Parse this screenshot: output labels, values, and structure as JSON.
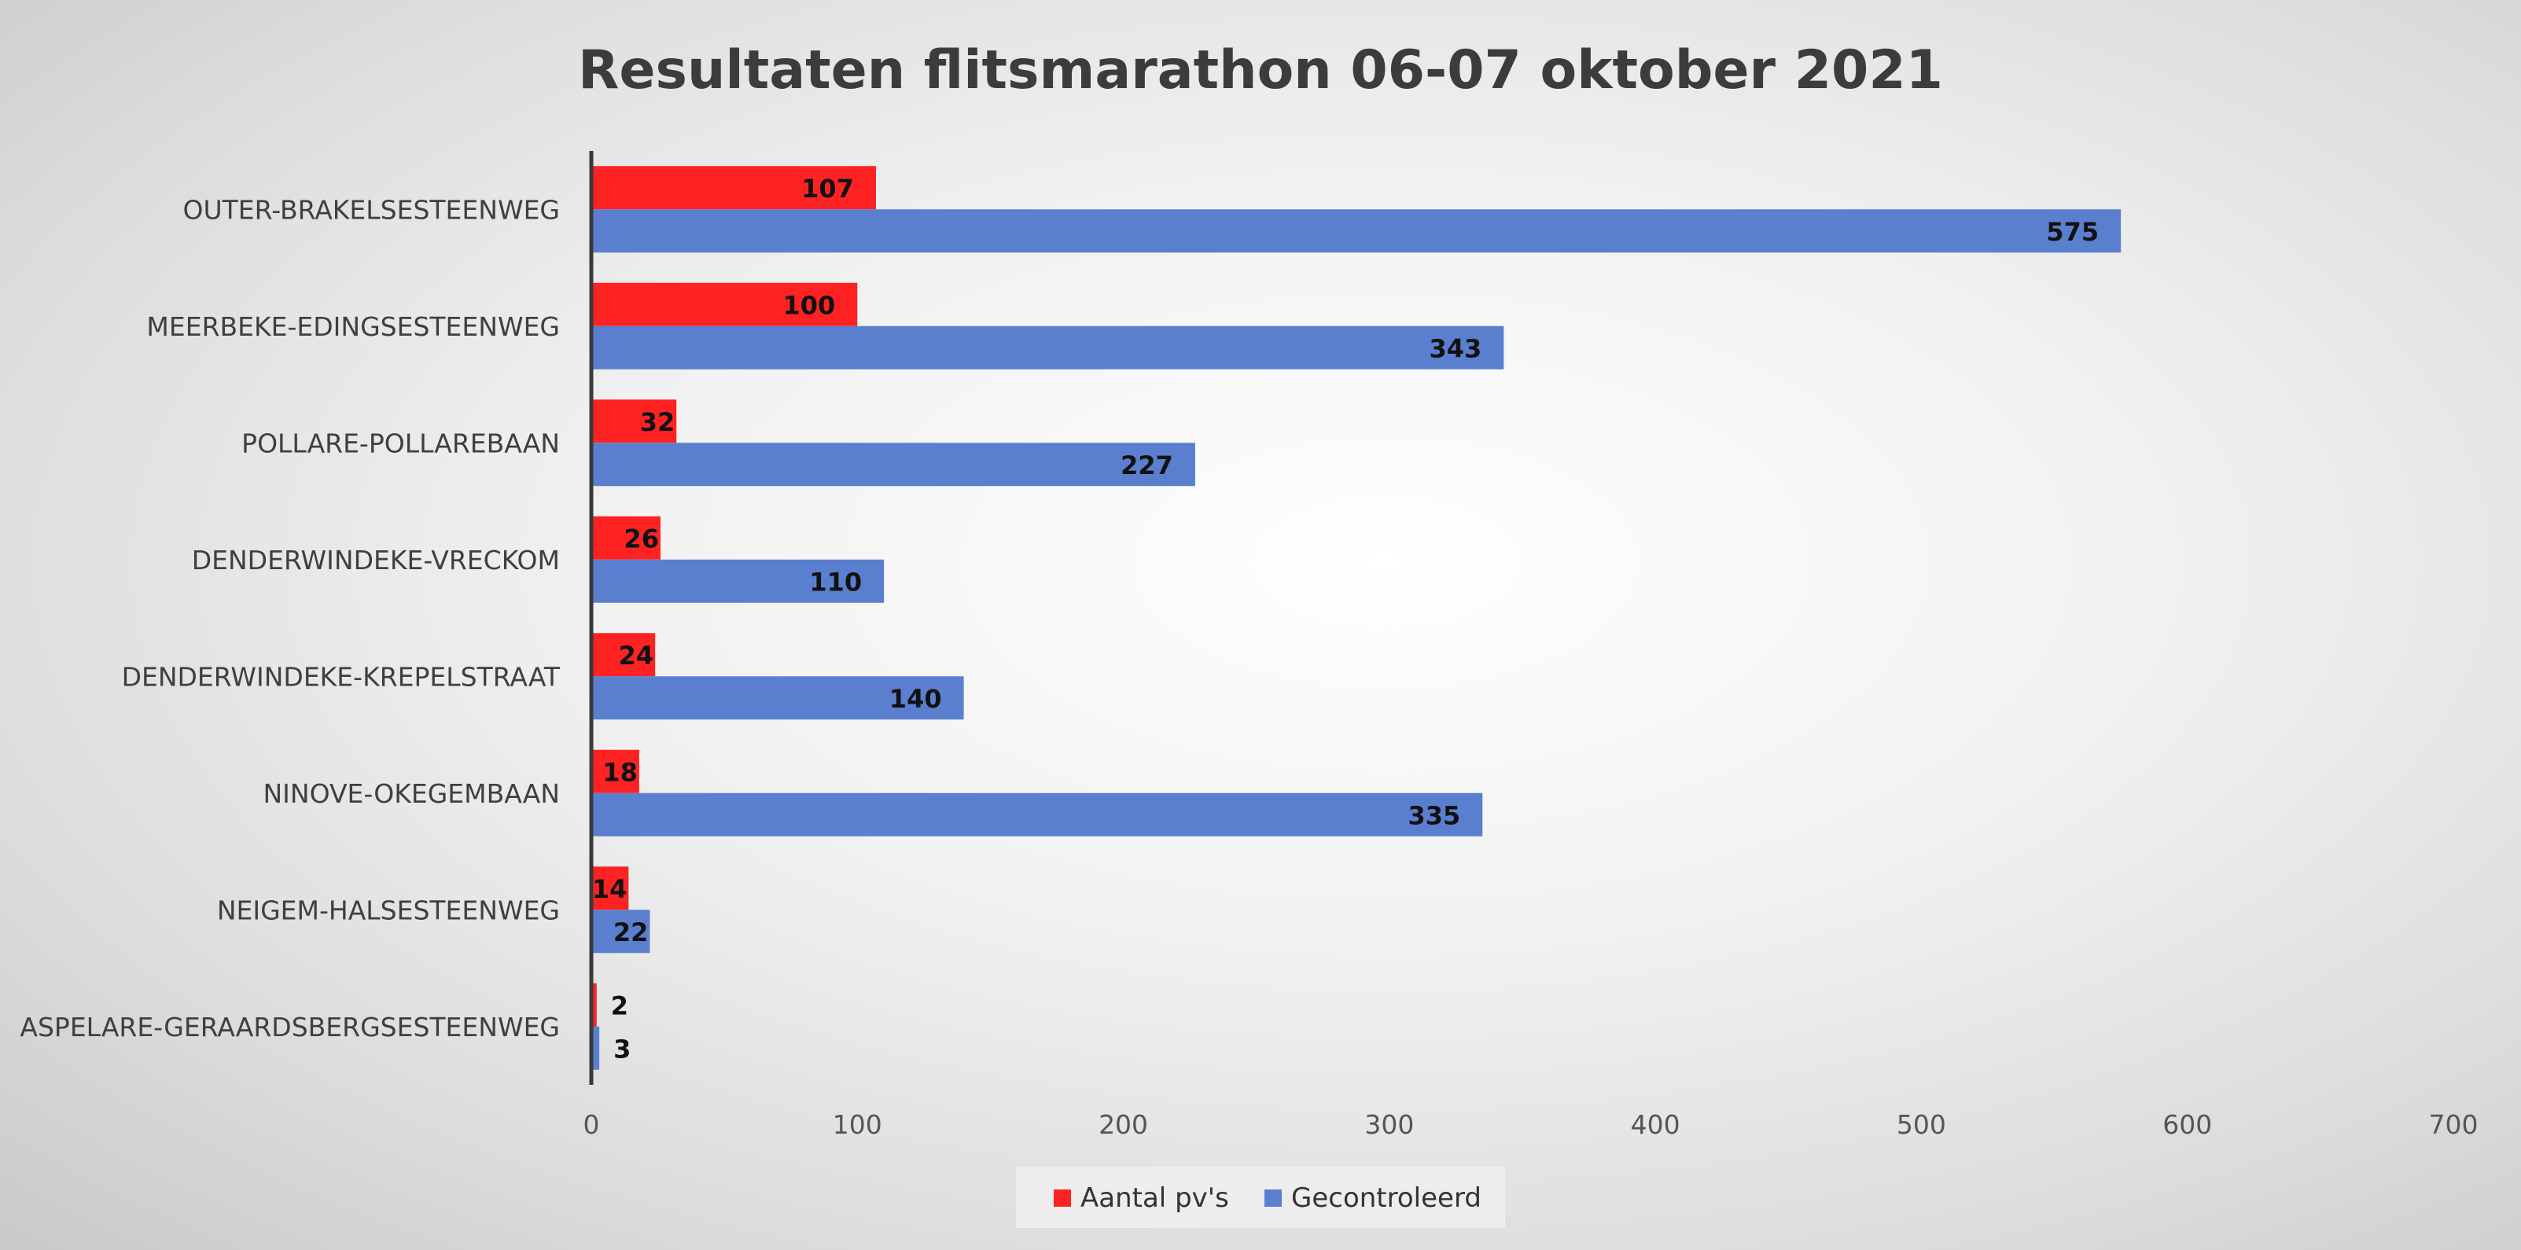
{
  "chart_data": {
    "type": "bar",
    "orientation": "horizontal",
    "title": "Resultaten flitsmarathon 06-07 oktober 2021",
    "xlabel": "",
    "ylabel": "",
    "categories": [
      "OUTER-BRAKELSESTEENWEG",
      "MEERBEKE-EDINGSESTEENWEG",
      "POLLARE-POLLAREBAAN",
      "DENDERWINDEKE-VRECKOM",
      "DENDERWINDEKE-KREPELSTRAAT",
      "NINOVE-OKEGEMBAAN",
      "NEIGEM-HALSESTEENWEG",
      "ASPELARE-GERAARDSBERGSESTEENWEG"
    ],
    "series": [
      {
        "name": "Aantal pv's",
        "color": "#ff2222",
        "values": [
          107,
          100,
          32,
          26,
          24,
          18,
          14,
          2
        ]
      },
      {
        "name": "Gecontroleerd",
        "color": "#5b7fcf",
        "values": [
          575,
          343,
          227,
          110,
          140,
          335,
          22,
          3
        ]
      }
    ],
    "xlim": [
      0,
      700
    ],
    "xticks": [
      0,
      100,
      200,
      300,
      400,
      500,
      600,
      700
    ],
    "grid": true,
    "data_labels": true,
    "legend_position": "bottom"
  }
}
